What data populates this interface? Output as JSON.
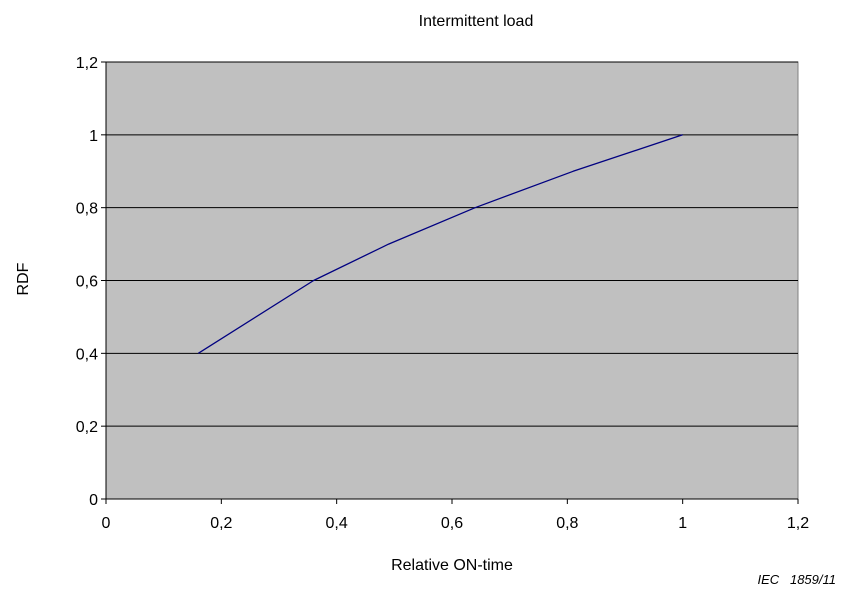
{
  "chart_data": {
    "type": "line",
    "title": "Intermittent load",
    "xlabel": "Relative ON-time",
    "ylabel": "RDF",
    "xlim": [
      0,
      1.2
    ],
    "ylim": [
      0,
      1.2
    ],
    "x_ticks": [
      "0",
      "0,2",
      "0,4",
      "0,6",
      "0,8",
      "1",
      "1,2"
    ],
    "y_ticks": [
      "0",
      "0,2",
      "0,4",
      "0,6",
      "0,8",
      "1",
      "1,2"
    ],
    "x_tick_values": [
      0,
      0.2,
      0.4,
      0.6,
      0.8,
      1.0,
      1.2
    ],
    "y_tick_values": [
      0,
      0.2,
      0.4,
      0.6,
      0.8,
      1.0,
      1.2
    ],
    "grid": "horizontal",
    "legend": "none",
    "series": [
      {
        "x": [
          0.16,
          0.36,
          0.49,
          0.64,
          0.81,
          1.0
        ],
        "y": [
          0.4,
          0.6,
          0.7,
          0.8,
          0.9,
          1.0
        ],
        "color": "#000080"
      }
    ],
    "plot_background": "#c0c0c0"
  },
  "reference_label": "IEC   1859/11"
}
